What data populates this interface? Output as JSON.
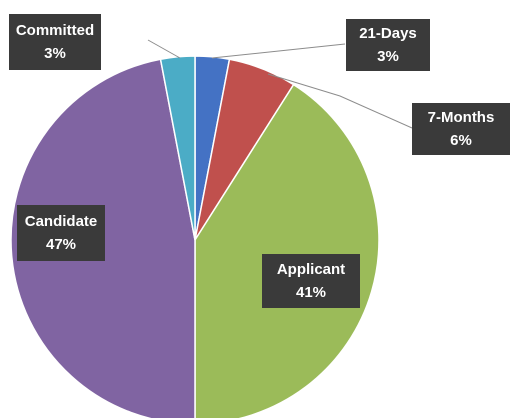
{
  "chart_data": {
    "type": "pie",
    "categories": [
      "21-Days",
      "7-Months",
      "Applicant",
      "Candidate",
      "Committed"
    ],
    "values": [
      3,
      6,
      41,
      47,
      3
    ],
    "value_labels": [
      "3%",
      "6%",
      "41%",
      "47%",
      "3%"
    ],
    "colors": [
      "#4472c4",
      "#c0504d",
      "#9bbb59",
      "#8064a2",
      "#4bacc6"
    ]
  }
}
